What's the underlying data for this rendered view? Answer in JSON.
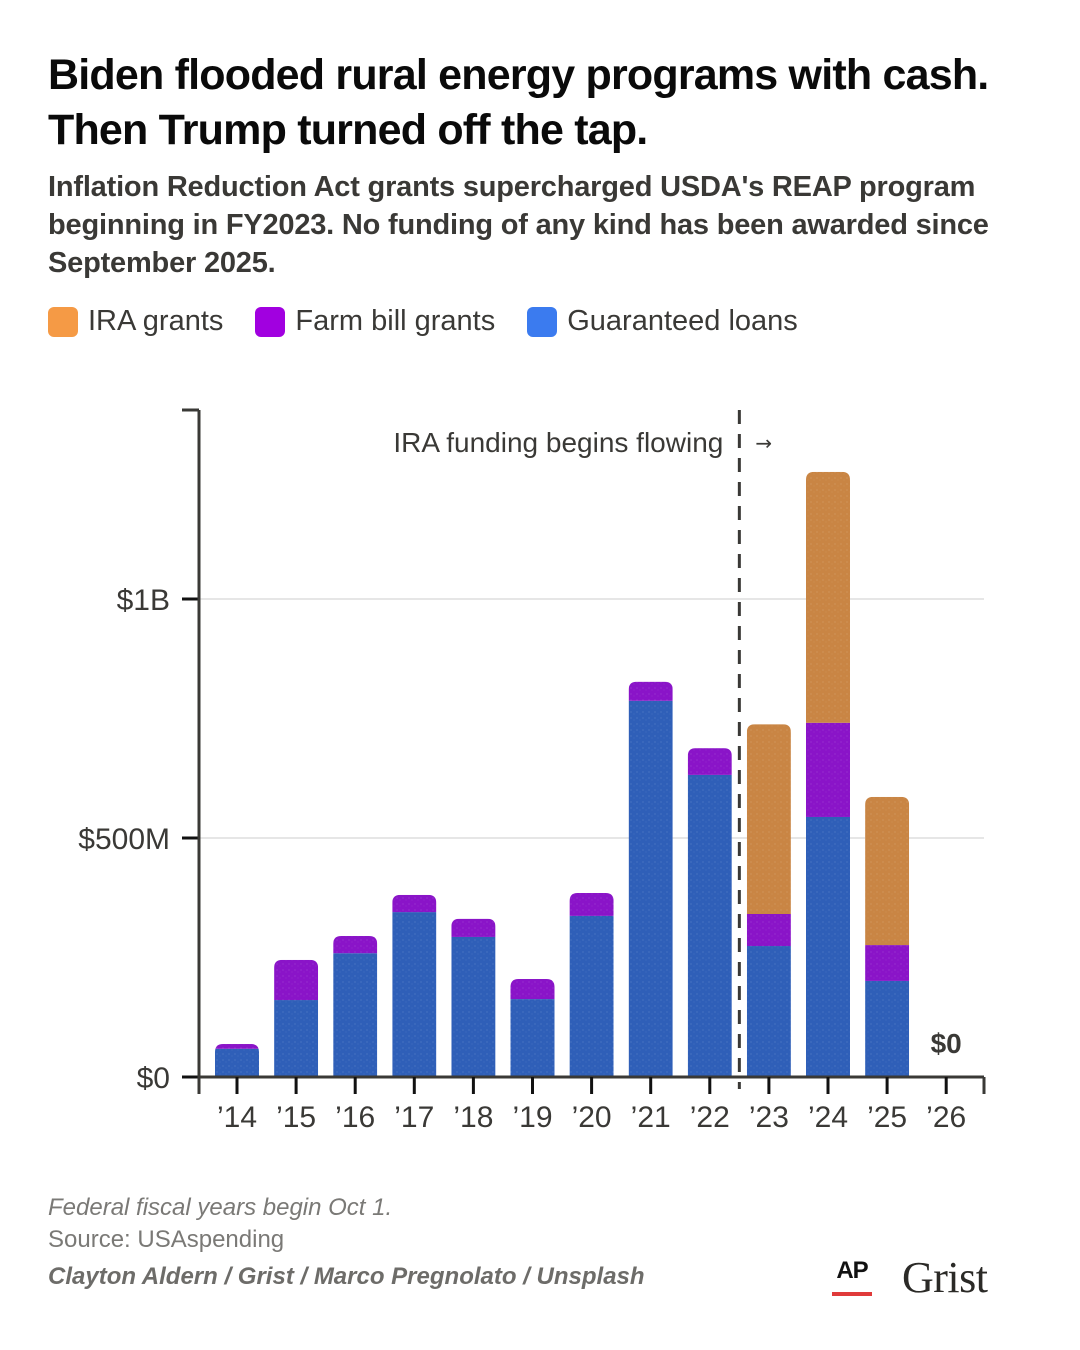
{
  "header": {
    "title": "Biden flooded rural energy programs with cash. Then Trump turned off the tap.",
    "subtitle": "Inflation Reduction Act grants supercharged USDA's REAP program beginning in FY2023. No funding of any kind has been awarded since September 2025."
  },
  "legend": [
    {
      "label": "IRA grants",
      "color": "#f59a45"
    },
    {
      "label": "Farm bill grants",
      "color": "#a100e0"
    },
    {
      "label": "Guaranteed loans",
      "color": "#3b7bef"
    }
  ],
  "chart_data": {
    "type": "bar",
    "stacked": true,
    "title": "Biden flooded rural energy programs with cash. Then Trump turned off the tap.",
    "categories": [
      "’14",
      "’15",
      "’16",
      "’17",
      "’18",
      "’19",
      "’20",
      "’21",
      "’22",
      "’23",
      "’24",
      "’25",
      "’26"
    ],
    "series": [
      {
        "name": "Guaranteed loans",
        "color": "#2f5fb8",
        "values": [
          59,
          161,
          259,
          345,
          293,
          163,
          337,
          787,
          632,
          274,
          544,
          201,
          0
        ]
      },
      {
        "name": "Farm bill grants",
        "color": "#8a14c8",
        "values": [
          10,
          84,
          36,
          36,
          38,
          42,
          48,
          40,
          56,
          67,
          197,
          75,
          0
        ]
      },
      {
        "name": "IRA grants",
        "color": "#c98544",
        "values": [
          0,
          0,
          0,
          0,
          0,
          0,
          0,
          0,
          0,
          397,
          525,
          310,
          0
        ]
      }
    ],
    "units": "millions USD",
    "xlabel": "",
    "ylabel": "",
    "ylim": [
      0,
      1395
    ],
    "yticks": [
      {
        "value": 0,
        "label": "$0"
      },
      {
        "value": 500,
        "label": "$500M"
      },
      {
        "value": 1000,
        "label": "$1B"
      }
    ],
    "grid": true,
    "legend_position": "top-left",
    "annotations": [
      {
        "text": "IRA funding begins flowing",
        "arrow": "→",
        "between": [
          "’22",
          "’23"
        ]
      },
      {
        "text": "$0",
        "at": "’26"
      }
    ]
  },
  "footer": {
    "note": "Federal fiscal years begin Oct 1.",
    "source": "Source: USAspending",
    "credit": "Clayton Aldern / Grist / Marco Pregnolato / Unsplash",
    "logos": {
      "ap": "AP",
      "grist": "Grist"
    }
  }
}
